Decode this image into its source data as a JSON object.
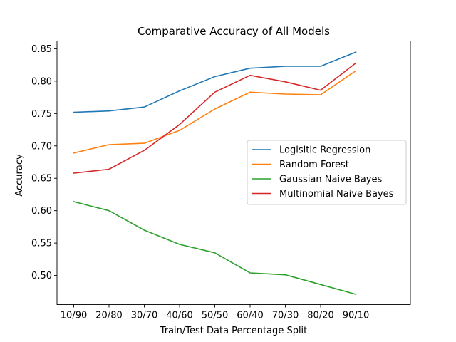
{
  "chart_data": {
    "type": "line",
    "title": "Comparative Accuracy of All Models",
    "xlabel": "Train/Test Data Percentage Split",
    "ylabel": "Accuracy",
    "categories": [
      "10/90",
      "20/80",
      "30/70",
      "40/60",
      "50/50",
      "60/40",
      "70/30",
      "80/20",
      "90/10"
    ],
    "yticks": [
      "0.50",
      "0.55",
      "0.60",
      "0.65",
      "0.70",
      "0.75",
      "0.80",
      "0.85"
    ],
    "ylim": [
      0.455,
      0.862
    ],
    "grid": false,
    "legend_position": "center-right",
    "series": [
      {
        "name": "Logisitic Regression",
        "color": "#1f77b4",
        "values": [
          0.752,
          0.754,
          0.76,
          0.785,
          0.807,
          0.82,
          0.823,
          0.823,
          0.845
        ]
      },
      {
        "name": "Random Forest",
        "color": "#ff7f0e",
        "values": [
          0.689,
          0.702,
          0.704,
          0.724,
          0.757,
          0.783,
          0.78,
          0.779,
          0.816
        ]
      },
      {
        "name": "Gaussian Naive Bayes",
        "color": "#2ca02c",
        "values": [
          0.614,
          0.6,
          0.57,
          0.548,
          0.535,
          0.504,
          0.501,
          0.486,
          0.471
        ]
      },
      {
        "name": "Multinomial Naive Bayes",
        "color": "#d62728",
        "values": [
          0.658,
          0.664,
          0.693,
          0.733,
          0.783,
          0.809,
          0.799,
          0.786,
          0.828
        ]
      }
    ]
  }
}
